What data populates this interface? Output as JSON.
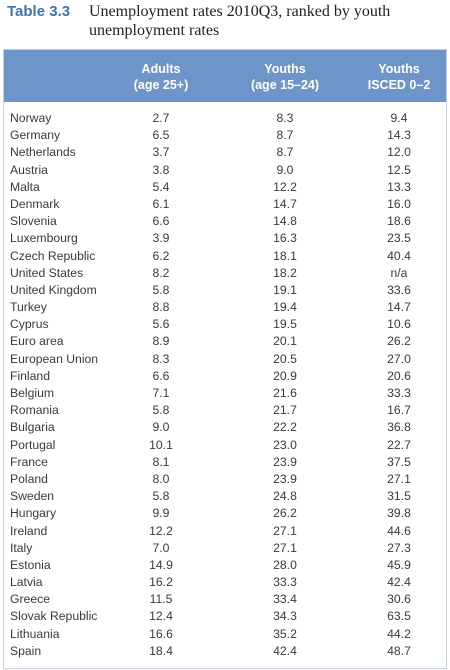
{
  "title": {
    "number": "Table 3.3",
    "text": "Unemployment rates 2010Q3, ranked by youth unemployment rates"
  },
  "columns": [
    "Adults\n(age 25+)",
    "Youths\n(age 15–24)",
    "Youths\nISCED 0–2"
  ],
  "rows": [
    {
      "country": "Norway",
      "adults": "2.7",
      "youths": "8.3",
      "isced": "9.4"
    },
    {
      "country": "Germany",
      "adults": "6.5",
      "youths": "8.7",
      "isced": "14.3"
    },
    {
      "country": "Netherlands",
      "adults": "3.7",
      "youths": "8.7",
      "isced": "12.0"
    },
    {
      "country": "Austria",
      "adults": "3.8",
      "youths": "9.0",
      "isced": "12.5"
    },
    {
      "country": "Malta",
      "adults": "5.4",
      "youths": "12.2",
      "isced": "13.3"
    },
    {
      "country": "Denmark",
      "adults": "6.1",
      "youths": "14.7",
      "isced": "16.0"
    },
    {
      "country": "Slovenia",
      "adults": "6.6",
      "youths": "14.8",
      "isced": "18.6"
    },
    {
      "country": "Luxembourg",
      "adults": "3.9",
      "youths": "16.3",
      "isced": "23.5"
    },
    {
      "country": "Czech Republic",
      "adults": "6.2",
      "youths": "18.1",
      "isced": "40.4"
    },
    {
      "country": "United States",
      "adults": "8.2",
      "youths": "18.2",
      "isced": "n/a"
    },
    {
      "country": "United Kingdom",
      "adults": "5.8",
      "youths": "19.1",
      "isced": "33.6"
    },
    {
      "country": "Turkey",
      "adults": "8.8",
      "youths": "19.4",
      "isced": "14.7"
    },
    {
      "country": "Cyprus",
      "adults": "5.6",
      "youths": "19.5",
      "isced": "10.6"
    },
    {
      "country": "Euro area",
      "adults": "8.9",
      "youths": "20.1",
      "isced": "26.2"
    },
    {
      "country": "European Union",
      "adults": "8.3",
      "youths": "20.5",
      "isced": "27.0"
    },
    {
      "country": "Finland",
      "adults": "6.6",
      "youths": "20.9",
      "isced": "20.6"
    },
    {
      "country": "Belgium",
      "adults": "7.1",
      "youths": "21.6",
      "isced": "33.3"
    },
    {
      "country": "Romania",
      "adults": "5.8",
      "youths": "21.7",
      "isced": "16.7"
    },
    {
      "country": "Bulgaria",
      "adults": "9.0",
      "youths": "22.2",
      "isced": "36.8"
    },
    {
      "country": "Portugal",
      "adults": "10.1",
      "youths": "23.0",
      "isced": "22.7"
    },
    {
      "country": "France",
      "adults": "8.1",
      "youths": "23.9",
      "isced": "37.5"
    },
    {
      "country": "Poland",
      "adults": "8.0",
      "youths": "23.9",
      "isced": "27.1"
    },
    {
      "country": "Sweden",
      "adults": "5.8",
      "youths": "24.8",
      "isced": "31.5"
    },
    {
      "country": "Hungary",
      "adults": "9.9",
      "youths": "26.2",
      "isced": "39.8"
    },
    {
      "country": "Ireland",
      "adults": "12.2",
      "youths": "27.1",
      "isced": "44.6"
    },
    {
      "country": "Italy",
      "adults": "7.0",
      "youths": "27.1",
      "isced": "27.3"
    },
    {
      "country": "Estonia",
      "adults": "14.9",
      "youths": "28.0",
      "isced": "45.9"
    },
    {
      "country": "Latvia",
      "adults": "16.2",
      "youths": "33.3",
      "isced": "42.4"
    },
    {
      "country": "Greece",
      "adults": "11.5",
      "youths": "33.4",
      "isced": "30.6"
    },
    {
      "country": "Slovak Republic",
      "adults": "12.4",
      "youths": "34.3",
      "isced": "63.5"
    },
    {
      "country": "Lithuania",
      "adults": "16.6",
      "youths": "35.2",
      "isced": "44.2"
    },
    {
      "country": "Spain",
      "adults": "18.4",
      "youths": "42.4",
      "isced": "48.7"
    }
  ],
  "colors": {
    "header_band": "#6e95c9",
    "table_number": "#3f73a8"
  }
}
